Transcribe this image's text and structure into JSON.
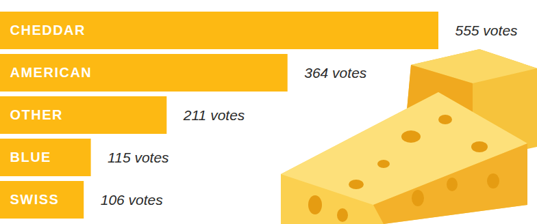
{
  "chart_data": {
    "type": "bar",
    "orientation": "horizontal",
    "categories": [
      "CHEDDAR",
      "AMERICAN",
      "OTHER",
      "BLUE",
      "SWISS"
    ],
    "values": [
      555,
      364,
      211,
      115,
      106
    ],
    "value_labels": [
      "555 votes",
      "364 votes",
      "211 votes",
      "115 votes",
      "106 votes"
    ],
    "data_labels": true,
    "color": "#fdb913",
    "xlim": [
      0,
      555
    ],
    "tick_labels": false,
    "grid": false
  }
}
